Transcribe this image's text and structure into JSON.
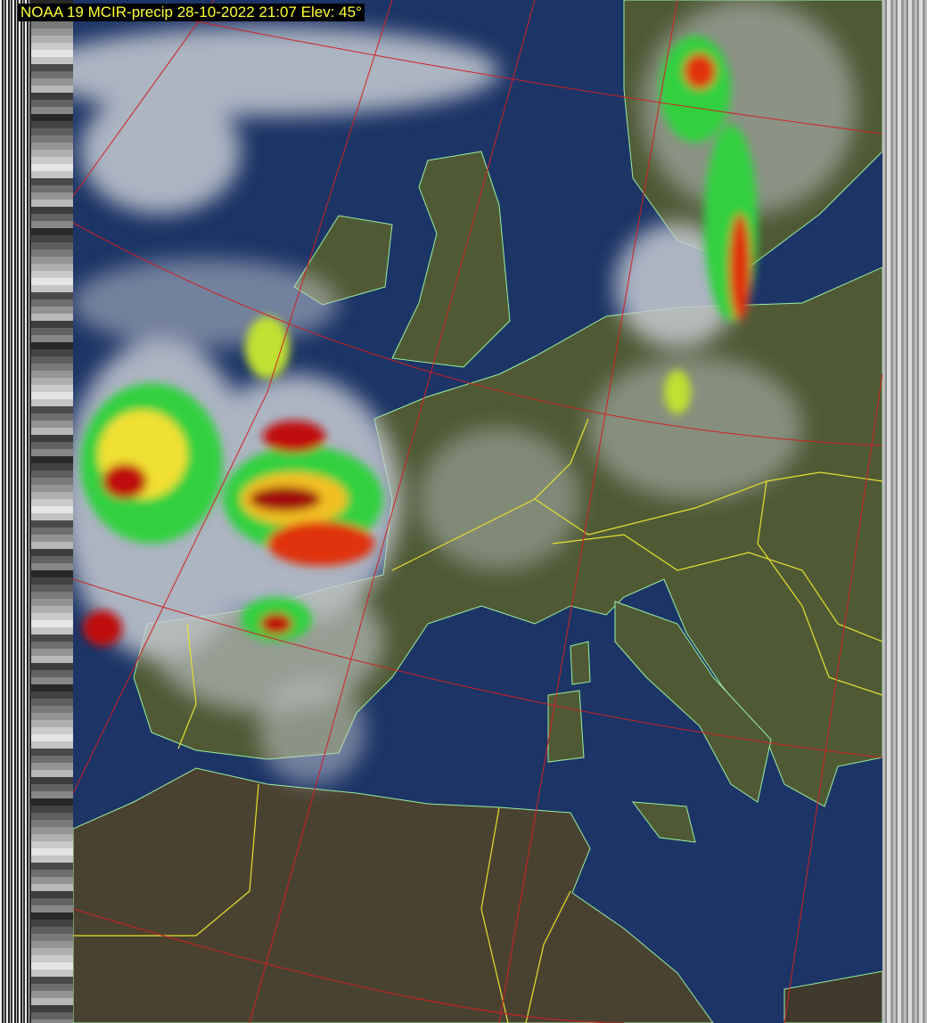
{
  "header": {
    "title": "NOAA 19 MCIR-precip 28-10-2022 21:07 Elev: 45°"
  },
  "colors": {
    "ocean": "#1c3566",
    "land": "#4f5a35",
    "desert": "#4a4231",
    "grid": "#d02020",
    "borders": "#e8e030",
    "coast": "#9af0a0",
    "title_text": "#ffff33"
  }
}
